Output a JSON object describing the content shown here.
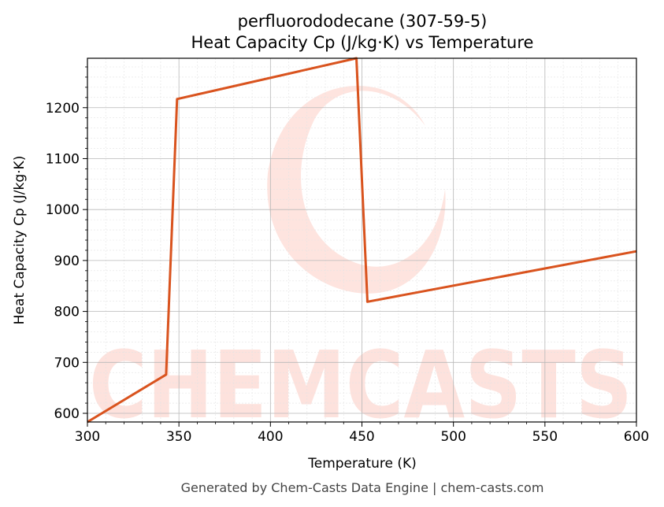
{
  "chart_data": {
    "type": "line",
    "title_line1": "perfluorododecane (307-59-5)",
    "title_line2": "Heat Capacity Cp (J/kg·K) vs Temperature",
    "xlabel": "Temperature (K)",
    "ylabel": "Heat Capacity Cp (J/kg·K)",
    "xlim": [
      300,
      600
    ],
    "ylim": [
      583,
      1297
    ],
    "xticks": [
      300,
      350,
      400,
      450,
      500,
      550,
      600
    ],
    "yticks": [
      600,
      700,
      800,
      900,
      1000,
      1100,
      1200
    ],
    "grid": true,
    "color": "#d9531e",
    "series": [
      {
        "x": [
          300,
          343,
          349,
          447,
          453,
          600
        ],
        "y": [
          583,
          676,
          1217,
          1297,
          819,
          918
        ]
      }
    ]
  },
  "watermark": {
    "text": "CHEMCASTS",
    "color": "#fdd9d2"
  },
  "footer": "Generated by Chem-Casts Data Engine | chem-casts.com"
}
